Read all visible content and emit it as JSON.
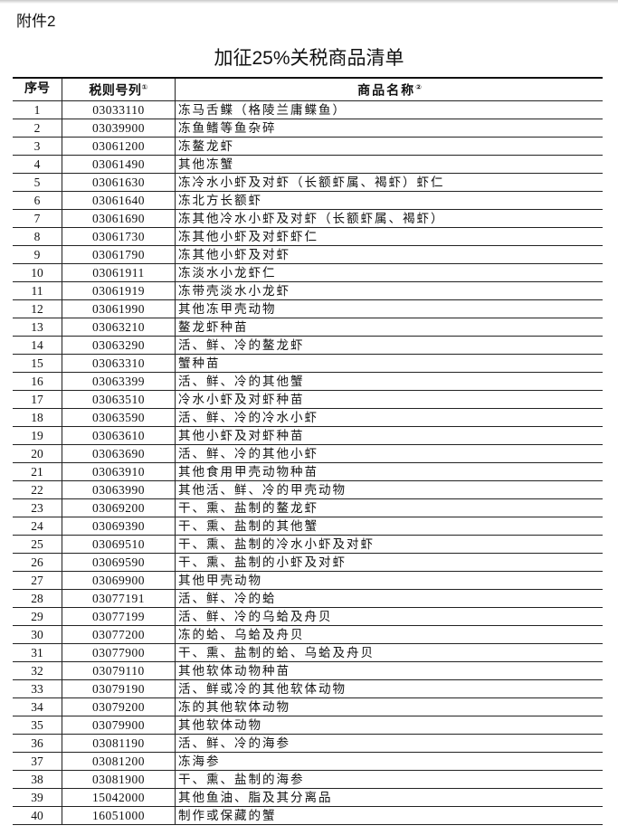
{
  "attachment_label": "附件2",
  "title": "加征25%关税商品清单",
  "table": {
    "headers": {
      "index": "序号",
      "code": "税则号列",
      "code_note": "①",
      "name": "商品名称",
      "name_note": "②"
    },
    "rows": [
      [
        "1",
        "03033110",
        "冻马舌鲽（格陵兰庸鲽鱼）"
      ],
      [
        "2",
        "03039900",
        "冻鱼鳍等鱼杂碎"
      ],
      [
        "3",
        "03061200",
        "冻鳌龙虾"
      ],
      [
        "4",
        "03061490",
        "其他冻蟹"
      ],
      [
        "5",
        "03061630",
        "冻冷水小虾及对虾（长额虾属、褐虾）虾仁"
      ],
      [
        "6",
        "03061640",
        "冻北方长额虾"
      ],
      [
        "7",
        "03061690",
        "冻其他冷水小虾及对虾（长额虾属、褐虾）"
      ],
      [
        "8",
        "03061730",
        "冻其他小虾及对虾虾仁"
      ],
      [
        "9",
        "03061790",
        "冻其他小虾及对虾"
      ],
      [
        "10",
        "03061911",
        "冻淡水小龙虾仁"
      ],
      [
        "11",
        "03061919",
        "冻带壳淡水小龙虾"
      ],
      [
        "12",
        "03061990",
        "其他冻甲壳动物"
      ],
      [
        "13",
        "03063210",
        "鳌龙虾种苗"
      ],
      [
        "14",
        "03063290",
        "活、鲜、冷的鳌龙虾"
      ],
      [
        "15",
        "03063310",
        "蟹种苗"
      ],
      [
        "16",
        "03063399",
        "活、鲜、冷的其他蟹"
      ],
      [
        "17",
        "03063510",
        "冷水小虾及对虾种苗"
      ],
      [
        "18",
        "03063590",
        "活、鲜、冷的冷水小虾"
      ],
      [
        "19",
        "03063610",
        "其他小虾及对虾种苗"
      ],
      [
        "20",
        "03063690",
        "活、鲜、冷的其他小虾"
      ],
      [
        "21",
        "03063910",
        "其他食用甲壳动物种苗"
      ],
      [
        "22",
        "03063990",
        "其他活、鲜、冷的甲壳动物"
      ],
      [
        "23",
        "03069200",
        "干、熏、盐制的鳌龙虾"
      ],
      [
        "24",
        "03069390",
        "干、熏、盐制的其他蟹"
      ],
      [
        "25",
        "03069510",
        "干、熏、盐制的冷水小虾及对虾"
      ],
      [
        "26",
        "03069590",
        "干、熏、盐制的小虾及对虾"
      ],
      [
        "27",
        "03069900",
        "其他甲壳动物"
      ],
      [
        "28",
        "03077191",
        "活、鲜、冷的蛤"
      ],
      [
        "29",
        "03077199",
        "活、鲜、冷的乌蛤及舟贝"
      ],
      [
        "30",
        "03077200",
        "冻的蛤、乌蛤及舟贝"
      ],
      [
        "31",
        "03077900",
        "干、熏、盐制的蛤、乌蛤及舟贝"
      ],
      [
        "32",
        "03079110",
        "其他软体动物种苗"
      ],
      [
        "33",
        "03079190",
        "活、鲜或冷的其他软体动物"
      ],
      [
        "34",
        "03079200",
        "冻的其他软体动物"
      ],
      [
        "35",
        "03079900",
        "其他软体动物"
      ],
      [
        "36",
        "03081190",
        "活、鲜、冷的海参"
      ],
      [
        "37",
        "03081200",
        "冻海参"
      ],
      [
        "38",
        "03081900",
        "干、熏、盐制的海参"
      ],
      [
        "39",
        "15042000",
        "其他鱼油、脂及其分离品"
      ],
      [
        "40",
        "16051000",
        "制作或保藏的蟹"
      ]
    ]
  }
}
